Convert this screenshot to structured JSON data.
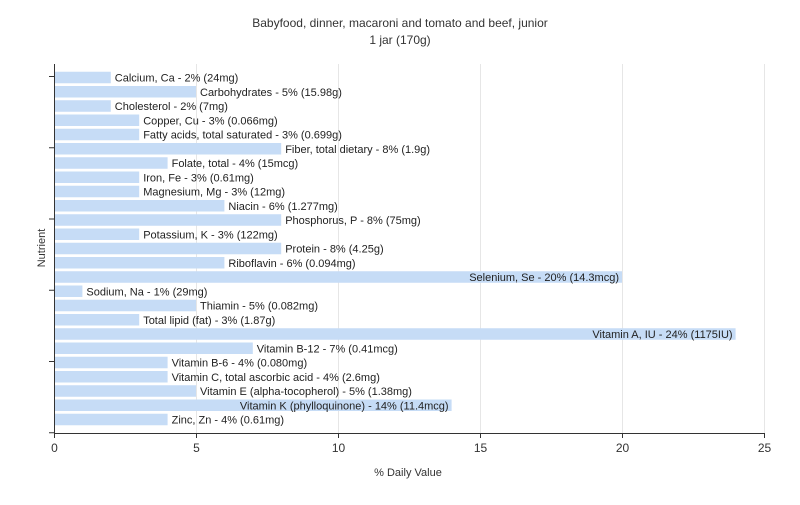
{
  "chart_data": {
    "type": "bar",
    "orientation": "horizontal",
    "title": "Babyfood, dinner, macaroni and tomato and beef, junior",
    "subtitle": "1 jar (170g)",
    "xlabel": "% Daily Value",
    "ylabel": "Nutrient",
    "xlim": [
      0,
      25
    ],
    "xticks": [
      0,
      5,
      10,
      15,
      20,
      25
    ],
    "grid": true,
    "bar_color": "#c6dcf6",
    "categories": [
      "Calcium, Ca",
      "Carbohydrates",
      "Cholesterol",
      "Copper, Cu",
      "Fatty acids, total saturated",
      "Fiber, total dietary",
      "Folate, total",
      "Iron, Fe",
      "Magnesium, Mg",
      "Niacin",
      "Phosphorus, P",
      "Potassium, K",
      "Protein",
      "Riboflavin",
      "Selenium, Se",
      "Sodium, Na",
      "Thiamin",
      "Total lipid (fat)",
      "Vitamin A, IU",
      "Vitamin B-12",
      "Vitamin B-6",
      "Vitamin C, total ascorbic acid",
      "Vitamin E (alpha-tocopherol)",
      "Vitamin K (phylloquinone)",
      "Zinc, Zn"
    ],
    "values": [
      2,
      5,
      2,
      3,
      3,
      8,
      4,
      3,
      3,
      6,
      8,
      3,
      8,
      6,
      20,
      1,
      5,
      3,
      24,
      7,
      4,
      4,
      5,
      14,
      4
    ],
    "labels": [
      "Calcium, Ca - 2% (24mg)",
      "Carbohydrates - 5% (15.98g)",
      "Cholesterol - 2% (7mg)",
      "Copper, Cu - 3% (0.066mg)",
      "Fatty acids, total saturated - 3% (0.699g)",
      "Fiber, total dietary - 8% (1.9g)",
      "Folate, total - 4% (15mcg)",
      "Iron, Fe - 3% (0.61mg)",
      "Magnesium, Mg - 3% (12mg)",
      "Niacin - 6% (1.277mg)",
      "Phosphorus, P - 8% (75mg)",
      "Potassium, K - 3% (122mg)",
      "Protein - 8% (4.25g)",
      "Riboflavin - 6% (0.094mg)",
      "Selenium, Se - 20% (14.3mcg)",
      "Sodium, Na - 1% (29mg)",
      "Thiamin - 5% (0.082mg)",
      "Total lipid (fat) - 3% (1.87g)",
      "Vitamin A, IU - 24% (1175IU)",
      "Vitamin B-12 - 7% (0.41mcg)",
      "Vitamin B-6 - 4% (0.080mg)",
      "Vitamin C, total ascorbic acid - 4% (2.6mg)",
      "Vitamin E (alpha-tocopherol) - 5% (1.38mg)",
      "Vitamin K (phylloquinone) - 14% (11.4mcg)",
      "Zinc, Zn - 4% (0.61mg)"
    ]
  }
}
